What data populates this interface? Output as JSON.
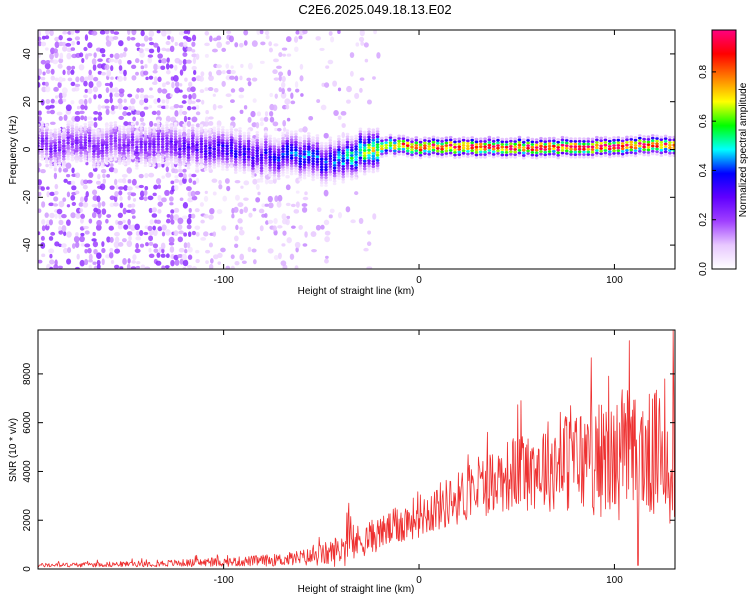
{
  "chart_data": [
    {
      "type": "heatmap",
      "title": "C2E6.2025.049.18.13.E02",
      "xlabel": "Height of straight line (km)",
      "ylabel": "Frequency (Hz)",
      "xlim": [
        -195,
        131
      ],
      "ylim": [
        -50,
        50
      ],
      "xticks": [
        -100,
        0,
        100
      ],
      "yticks": [
        -40,
        -20,
        0,
        20,
        40
      ],
      "colorbar": {
        "label": "Normalized spectral amplitude",
        "range": [
          0,
          0.97
        ],
        "ticks": [
          "0.0",
          "0.2",
          "0.4",
          "0.6",
          "0.8"
        ],
        "tick_values": [
          0,
          0.2,
          0.4,
          0.6,
          0.8
        ],
        "colormap": [
          "#ffffff",
          "#e8c8ff",
          "#a040ff",
          "#6000ff",
          "#0000ff",
          "#00ffff",
          "#00ff00",
          "#ffff00",
          "#ff8000",
          "#ff0000",
          "#ff0080"
        ]
      },
      "ridge": {
        "x": [
          -140,
          -120,
          -100,
          -80,
          -60,
          -45,
          -35,
          -25,
          -15,
          0,
          25,
          50,
          75,
          100,
          120,
          131
        ],
        "freq": [
          2,
          2,
          0,
          -3,
          -2,
          -5,
          -2,
          -1,
          2,
          1,
          1,
          1,
          1,
          1,
          2,
          1
        ],
        "peak_amplitude": [
          0.25,
          0.3,
          0.35,
          0.35,
          0.45,
          0.4,
          0.55,
          0.65,
          0.8,
          0.95,
          0.97,
          0.97,
          0.97,
          0.97,
          0.95,
          0.9
        ]
      },
      "noise_region_x": [
        -195,
        -20
      ]
    },
    {
      "type": "line",
      "xlabel": "Height of straight line (km)",
      "ylabel": "SNR (10 * v/v)",
      "xlim": [
        -195,
        131
      ],
      "ylim": [
        0,
        9800
      ],
      "xticks": [
        -100,
        0,
        100
      ],
      "yticks": [
        0,
        2000,
        4000,
        6000,
        8000
      ],
      "series": [
        {
          "name": "SNR",
          "color": "#ee3030",
          "envelope": {
            "x": [
              -195,
              -150,
              -100,
              -70,
              -55,
              -45,
              -38,
              -30,
              -20,
              -10,
              0,
              20,
              40,
              60,
              80,
              100,
              115,
              125,
              131
            ],
            "mean": [
              150,
              200,
              280,
              380,
              500,
              650,
              900,
              1150,
              1450,
              1800,
              2200,
              2900,
              3700,
              4200,
              4450,
              4500,
              4600,
              4750,
              5000
            ],
            "amplitude": [
              80,
              110,
              180,
              260,
              380,
              550,
              800,
              700,
              700,
              800,
              900,
              1100,
              1400,
              1800,
              2200,
              2500,
              2600,
              2700,
              3500
            ]
          },
          "notable_points": [
            {
              "x": -36,
              "y": 2700
            },
            {
              "x": 130,
              "y": 9800
            },
            {
              "x": 112,
              "y": 150
            }
          ]
        }
      ]
    }
  ]
}
